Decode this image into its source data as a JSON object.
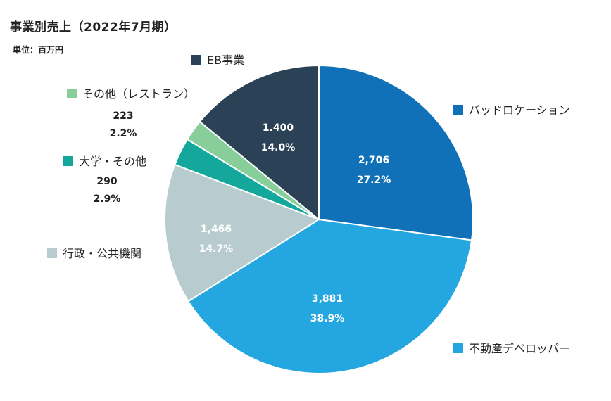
{
  "title": "事業別売上（2022年7月期）",
  "unit": "単位：百万円",
  "chart_data": {
    "type": "pie",
    "title": "事業別売上（2022年7月期）",
    "unit": "単位：百万円",
    "start_angle_deg": 0,
    "direction": "clockwise",
    "slices": [
      {
        "label": "バッドロケーション",
        "value": 2706,
        "value_text": "2,706",
        "percent": 27.2,
        "percent_text": "27.2%",
        "color": "#1071b8"
      },
      {
        "label": "不動産デベロッパー",
        "value": 3881,
        "value_text": "3,881",
        "percent": 38.9,
        "percent_text": "38.9%",
        "color": "#24a7e0"
      },
      {
        "label": "行政・公共機関",
        "value": 1466,
        "value_text": "1,466",
        "percent": 14.7,
        "percent_text": "14.7%",
        "color": "#b8cccf"
      },
      {
        "label": "大学・その他",
        "value": 290,
        "value_text": "290",
        "percent": 2.9,
        "percent_text": "2.9%",
        "color": "#14a79c"
      },
      {
        "label": "その他（レストラン）",
        "value": 223,
        "value_text": "223",
        "percent": 2.2,
        "percent_text": "2.2%",
        "color": "#88ce9a"
      },
      {
        "label": "EB事業",
        "value": 1400,
        "value_text": "1.400",
        "percent": 14.0,
        "percent_text": "14.0%",
        "color": "#2b4156"
      }
    ]
  }
}
